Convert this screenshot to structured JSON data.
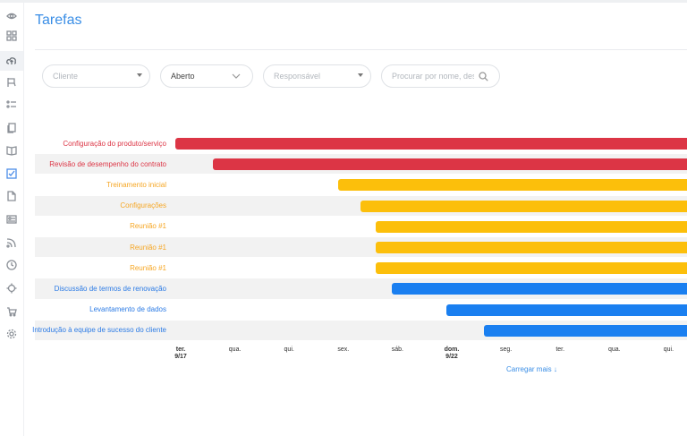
{
  "page": {
    "title": "Tarefas"
  },
  "sidebar": {
    "icons": [
      "eye-icon",
      "dashboard-icon",
      "cloud-upload-icon",
      "flag-icon",
      "list-icon",
      "pages-icon",
      "book-icon",
      "checkbox-icon",
      "file-icon",
      "id-card-icon",
      "rss-icon",
      "clock-icon",
      "target-icon",
      "cart-icon",
      "gear-icon"
    ],
    "active_index": 2,
    "checked_index": 7
  },
  "filters": {
    "client": {
      "placeholder": "Cliente"
    },
    "status": {
      "value": "Aberto"
    },
    "responsible": {
      "placeholder": "Responsável"
    },
    "search": {
      "placeholder": "Procurar por nome, descr"
    }
  },
  "colors": {
    "red": "#dc3545",
    "orange": "#fcbf0b",
    "blue": "#1a7ff0",
    "red_text": "#dc3545",
    "orange_text": "#f6a623",
    "blue_text": "#2c7be5",
    "accent": "#3a8ee6"
  },
  "chart_data": {
    "type": "gantt",
    "tasks": [
      {
        "name": "Configuração do produto/serviço",
        "status": "red",
        "start_day": "2024-09-17",
        "start_fraction": 0.0
      },
      {
        "name": "Revisão de desempenho do contrato",
        "status": "red",
        "start_day": "2024-09-17",
        "start_fraction": 0.7
      },
      {
        "name": "Treinamento inicial",
        "status": "orange",
        "start_day": "2024-09-20",
        "start_fraction": 0.0
      },
      {
        "name": "Configurações",
        "status": "orange",
        "start_day": "2024-09-20",
        "start_fraction": 0.42
      },
      {
        "name": "Reunião #1",
        "status": "orange",
        "start_day": "2024-09-20",
        "start_fraction": 0.7
      },
      {
        "name": "Reunião #1",
        "status": "orange",
        "start_day": "2024-09-20",
        "start_fraction": 0.7
      },
      {
        "name": "Reunião #1",
        "status": "orange",
        "start_day": "2024-09-20",
        "start_fraction": 0.7
      },
      {
        "name": "Discussão de termos de renovação",
        "status": "blue",
        "start_day": "2024-09-21",
        "start_fraction": 0.0
      },
      {
        "name": "Levantamento de dados",
        "status": "blue",
        "start_day": "2024-09-22",
        "start_fraction": 0.0
      },
      {
        "name": "Introdução à equipe de sucesso do cliente",
        "status": "blue",
        "start_day": "2024-09-22",
        "start_fraction": 0.7
      }
    ],
    "x_ticks": [
      {
        "label": "ter.",
        "sub": "9/17",
        "bold": true
      },
      {
        "label": "qua.",
        "sub": "",
        "bold": false
      },
      {
        "label": "qui.",
        "sub": "",
        "bold": false
      },
      {
        "label": "sex.",
        "sub": "",
        "bold": false
      },
      {
        "label": "sáb.",
        "sub": "",
        "bold": false
      },
      {
        "label": "dom.",
        "sub": "9/22",
        "bold": true
      },
      {
        "label": "seg.",
        "sub": "",
        "bold": false
      },
      {
        "label": "ter.",
        "sub": "",
        "bold": false
      },
      {
        "label": "qua.",
        "sub": "",
        "bold": false
      },
      {
        "label": "qui.",
        "sub": "",
        "bold": false
      }
    ]
  },
  "footer": {
    "load_more": "Carregar mais ↓"
  }
}
